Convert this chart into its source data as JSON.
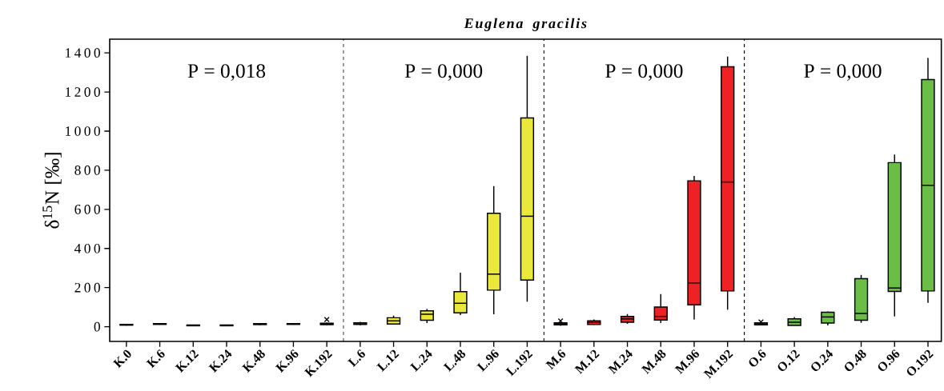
{
  "chart_data": {
    "type": "box",
    "title": "Euglena gracilis",
    "ylabel": "δ$^{15}$N [‰]",
    "categories": [
      "K.0",
      "K.6",
      "K.12",
      "K.24",
      "K.48",
      "K.96",
      "K.192",
      "L.6",
      "L.12",
      "L.24",
      "L.48",
      "L.96",
      "L.192",
      "M.6",
      "M.12",
      "M.24",
      "M.48",
      "M.96",
      "M.192",
      "O.6",
      "O.12",
      "O.24",
      "O.48",
      "O.96",
      "O.192"
    ],
    "boxes": [
      {
        "low": 6,
        "q1": 8,
        "median": 10,
        "q3": 12,
        "high": 14
      },
      {
        "low": 10,
        "q1": 12,
        "median": 14,
        "q3": 16,
        "high": 18
      },
      {
        "low": 3,
        "q1": 5,
        "median": 7,
        "q3": 9,
        "high": 11
      },
      {
        "low": 3,
        "q1": 5,
        "median": 7,
        "q3": 9,
        "high": 11
      },
      {
        "low": 8,
        "q1": 11,
        "median": 14,
        "q3": 16,
        "high": 18
      },
      {
        "low": 10,
        "q1": 12,
        "median": 14,
        "q3": 16,
        "high": 18
      },
      {
        "low": 8,
        "q1": 11,
        "median": 14,
        "q3": 18,
        "high": 22,
        "outliers": [
          37
        ]
      },
      {
        "low": 8,
        "q1": 12,
        "median": 15,
        "q3": 20,
        "high": 25
      },
      {
        "low": 12,
        "q1": 14,
        "median": 30,
        "q3": 46,
        "high": 57
      },
      {
        "low": 19,
        "q1": 33,
        "median": 64,
        "q3": 81,
        "high": 91
      },
      {
        "low": 60,
        "q1": 71,
        "median": 120,
        "q3": 179,
        "high": 276
      },
      {
        "low": 64,
        "q1": 187,
        "median": 269,
        "q3": 580,
        "high": 719
      },
      {
        "low": 128,
        "q1": 239,
        "median": 565,
        "q3": 1067,
        "high": 1385
      },
      {
        "low": 5,
        "q1": 10,
        "median": 15,
        "q3": 20,
        "high": 25,
        "outliers": [
          30
        ]
      },
      {
        "low": 10,
        "q1": 12,
        "median": 22,
        "q3": 30,
        "high": 37
      },
      {
        "low": 15,
        "q1": 23,
        "median": 40,
        "q3": 53,
        "high": 65
      },
      {
        "low": 19,
        "q1": 34,
        "median": 53,
        "q3": 101,
        "high": 167
      },
      {
        "low": 37,
        "q1": 112,
        "median": 224,
        "q3": 746,
        "high": 771
      },
      {
        "low": 87,
        "q1": 183,
        "median": 740,
        "q3": 1329,
        "high": 1381
      },
      {
        "low": 10,
        "q1": 10,
        "median": 15,
        "q3": 20,
        "high": 25,
        "outliers": [
          25
        ]
      },
      {
        "low": 7,
        "q1": 7,
        "median": 23,
        "q3": 40,
        "high": 50
      },
      {
        "low": 7,
        "q1": 19,
        "median": 50,
        "q3": 74,
        "high": 78
      },
      {
        "low": 20,
        "q1": 33,
        "median": 68,
        "q3": 246,
        "high": 265
      },
      {
        "low": 53,
        "q1": 180,
        "median": 198,
        "q3": 839,
        "high": 880
      },
      {
        "low": 122,
        "q1": 183,
        "median": 723,
        "q3": 1264,
        "high": 1374
      }
    ],
    "colors": [
      "#000000",
      "#000000",
      "#000000",
      "#000000",
      "#000000",
      "#000000",
      "#000000",
      "#ebe83c",
      "#ebe83c",
      "#ebe83c",
      "#ebe83c",
      "#ebe83c",
      "#ebe83c",
      "#ee2224",
      "#ee2224",
      "#ee2224",
      "#ee2224",
      "#ee2224",
      "#ee2224",
      "#6abd45",
      "#6abd45",
      "#6abd45",
      "#6abd45",
      "#6abd45",
      "#6abd45"
    ],
    "ylim": [
      -75,
      1470
    ],
    "yticks": [
      0,
      200,
      400,
      600,
      800,
      1000,
      1200,
      1400
    ],
    "annotations": [
      "P = 0,018",
      "P = 0,000",
      "P = 0,000",
      "P = 0,000"
    ],
    "marker": "cross"
  }
}
